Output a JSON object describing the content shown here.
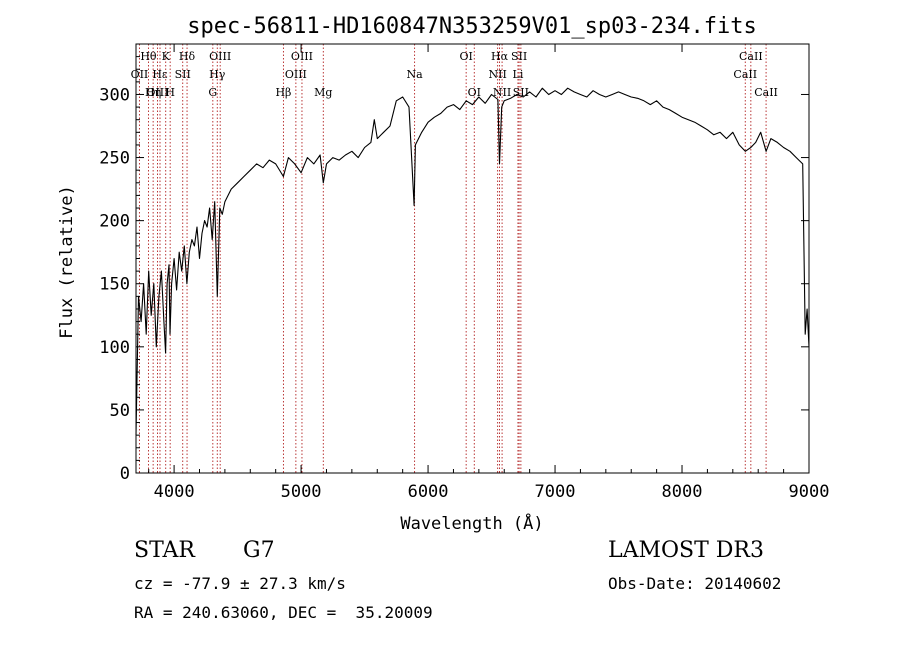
{
  "chart_data": {
    "type": "line",
    "title": "spec-56811-HD160847N353259V01_sp03-234.fits",
    "xlabel": "Wavelength (Å)",
    "ylabel": "Flux (relative)",
    "xlim": [
      3700,
      9000
    ],
    "ylim": [
      0,
      340
    ],
    "xticks": [
      4000,
      5000,
      6000,
      7000,
      8000,
      9000
    ],
    "yticks": [
      0,
      50,
      100,
      150,
      200,
      250,
      300
    ],
    "grid": false,
    "series": [
      {
        "x": [
          3700,
          3720,
          3740,
          3760,
          3780,
          3800,
          3820,
          3840,
          3860,
          3880,
          3900,
          3920,
          3933,
          3945,
          3960,
          3968,
          3980,
          4000,
          4020,
          4040,
          4060,
          4080,
          4101,
          4120,
          4140,
          4160,
          4180,
          4200,
          4220,
          4240,
          4260,
          4280,
          4300,
          4320,
          4340,
          4360,
          4380,
          4400,
          4450,
          4500,
          4550,
          4600,
          4650,
          4700,
          4750,
          4800,
          4861,
          4900,
          4950,
          5000,
          5050,
          5100,
          5150,
          5175,
          5200,
          5250,
          5300,
          5350,
          5400,
          5450,
          5500,
          5550,
          5577,
          5600,
          5650,
          5700,
          5750,
          5800,
          5850,
          5890,
          5900,
          5950,
          6000,
          6050,
          6100,
          6150,
          6200,
          6250,
          6300,
          6350,
          6400,
          6450,
          6500,
          6550,
          6563,
          6580,
          6600,
          6650,
          6700,
          6750,
          6800,
          6850,
          6900,
          6950,
          7000,
          7050,
          7100,
          7150,
          7200,
          7250,
          7300,
          7350,
          7400,
          7450,
          7500,
          7550,
          7600,
          7650,
          7700,
          7750,
          7800,
          7850,
          7900,
          7950,
          8000,
          8050,
          8100,
          8150,
          8200,
          8250,
          8300,
          8350,
          8400,
          8450,
          8498,
          8542,
          8580,
          8620,
          8662,
          8700,
          8750,
          8800,
          8850,
          8900,
          8950,
          8970,
          8985,
          9000
        ],
        "y": [
          30,
          140,
          120,
          150,
          110,
          160,
          125,
          150,
          100,
          140,
          160,
          120,
          95,
          150,
          165,
          110,
          150,
          170,
          145,
          175,
          160,
          180,
          150,
          175,
          185,
          180,
          195,
          170,
          190,
          200,
          195,
          210,
          185,
          215,
          140,
          210,
          205,
          215,
          225,
          230,
          235,
          240,
          245,
          242,
          248,
          245,
          235,
          250,
          245,
          238,
          250,
          245,
          252,
          230,
          245,
          250,
          248,
          252,
          255,
          250,
          258,
          262,
          280,
          265,
          270,
          275,
          295,
          298,
          290,
          212,
          260,
          270,
          278,
          282,
          285,
          290,
          292,
          288,
          295,
          292,
          298,
          293,
          300,
          296,
          245,
          290,
          295,
          297,
          300,
          298,
          302,
          298,
          305,
          300,
          303,
          300,
          305,
          302,
          300,
          298,
          303,
          300,
          298,
          300,
          302,
          300,
          298,
          297,
          295,
          292,
          295,
          290,
          288,
          285,
          282,
          280,
          278,
          275,
          272,
          268,
          270,
          265,
          270,
          260,
          255,
          258,
          262,
          270,
          255,
          265,
          262,
          258,
          255,
          250,
          245,
          110,
          130,
          100
        ]
      }
    ],
    "emission_lines": [
      {
        "label": "Hθ",
        "x": 3798,
        "row": 0
      },
      {
        "label": "OII",
        "x": 3727,
        "row": 1
      },
      {
        "label": "OIII",
        "x": 3869,
        "row": 2
      },
      {
        "label": "Hε",
        "x": 3889,
        "row": 1
      },
      {
        "label": "Hη",
        "x": 3835,
        "row": 2
      },
      {
        "label": "K",
        "x": 3934,
        "row": 0
      },
      {
        "label": "H",
        "x": 3969,
        "row": 2
      },
      {
        "label": "SII",
        "x": 4068,
        "row": 1
      },
      {
        "label": "Hδ",
        "x": 4102,
        "row": 0
      },
      {
        "label": "OIII",
        "x": 4363,
        "row": 0
      },
      {
        "label": "Hγ",
        "x": 4340,
        "row": 1
      },
      {
        "label": "G",
        "x": 4305,
        "row": 2
      },
      {
        "label": "Hβ",
        "x": 4861,
        "row": 2
      },
      {
        "label": "OIII",
        "x": 5007,
        "row": 0
      },
      {
        "label": "OIII",
        "x": 4959,
        "row": 1
      },
      {
        "label": "Mg",
        "x": 5175,
        "row": 2
      },
      {
        "label": "Na",
        "x": 5894,
        "row": 1
      },
      {
        "label": "OI",
        "x": 6300,
        "row": 0
      },
      {
        "label": "OI",
        "x": 6364,
        "row": 2
      },
      {
        "label": "Hα",
        "x": 6563,
        "row": 0
      },
      {
        "label": "SII",
        "x": 6717,
        "row": 0
      },
      {
        "label": "NII",
        "x": 6548,
        "row": 1
      },
      {
        "label": "Li",
        "x": 6708,
        "row": 1
      },
      {
        "label": "NII",
        "x": 6583,
        "row": 2
      },
      {
        "label": "SII",
        "x": 6731,
        "row": 2
      },
      {
        "label": "CaII",
        "x": 8542,
        "row": 0
      },
      {
        "label": "CaII",
        "x": 8498,
        "row": 1
      },
      {
        "label": "CaII",
        "x": 8662,
        "row": 2
      }
    ]
  },
  "info": {
    "object_type": "STAR",
    "subclass": "G7",
    "survey": "LAMOST DR3",
    "redshift": "cz = -77.9 ± 27.3 km/s",
    "obs_date": "Obs-Date: 20140602",
    "coords": "RA = 240.63060, DEC =  35.20009"
  }
}
